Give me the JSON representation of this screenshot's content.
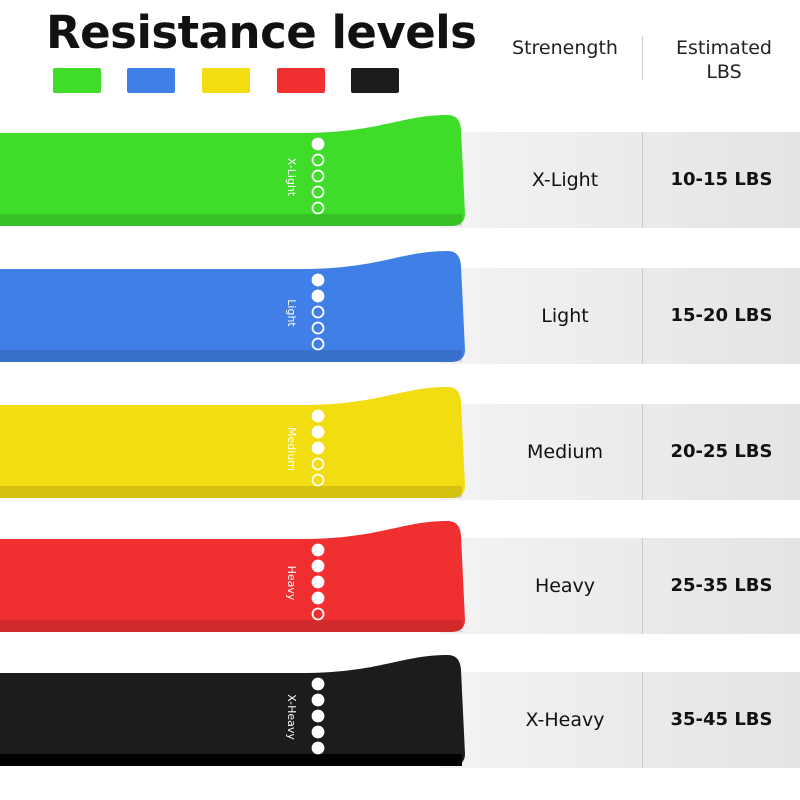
{
  "title": "Resistance levels",
  "headers": {
    "strength": "Strenength",
    "lbs_line1": "Estimated",
    "lbs_line2": "LBS"
  },
  "levels": [
    {
      "band_label": "X-Light",
      "strength": "X-Light",
      "lbs": "10-15 LBS",
      "color": "#3fdc2a",
      "filled_dots": 1
    },
    {
      "band_label": "Light",
      "strength": "Light",
      "lbs": "15-20 LBS",
      "color": "#3f7fe6",
      "filled_dots": 2
    },
    {
      "band_label": "Medium",
      "strength": "Medium",
      "lbs": "20-25 LBS",
      "color": "#f2dc12",
      "filled_dots": 3
    },
    {
      "band_label": "Heavy",
      "strength": "Heavy",
      "lbs": "25-35 LBS",
      "color": "#f03030",
      "filled_dots": 4
    },
    {
      "band_label": "X-Heavy",
      "strength": "X-Heavy",
      "lbs": "35-45 LBS",
      "color": "#1c1c1c",
      "filled_dots": 5
    }
  ]
}
